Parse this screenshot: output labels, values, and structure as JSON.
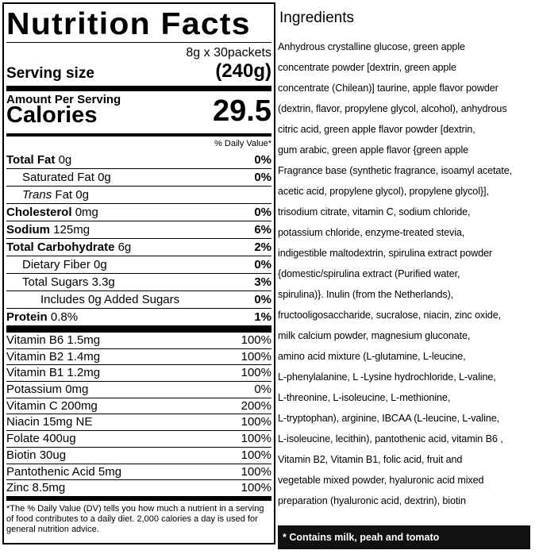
{
  "nutrition_facts": {
    "title": "Nutrition Facts",
    "servings": "8g x 30packets",
    "serving_size_label": "Serving size",
    "serving_size": "(240g)",
    "amount_per_serving": "Amount Per Serving",
    "calories_label": "Calories",
    "calories": "29.5",
    "daily_value_header": "% Daily Value*",
    "nutrients": [
      {
        "name": "Total Fat",
        "amount": "0g",
        "dv": "0%"
      },
      {
        "name": "Saturated Fat",
        "amount": "0g",
        "dv": "0%"
      },
      {
        "name_italic": "Trans",
        "name": "Fat",
        "amount": "0g"
      },
      {
        "name": "Cholesterol",
        "amount": "0mg",
        "dv": "0%"
      },
      {
        "name": "Sodium",
        "amount": "125mg",
        "dv": "6%"
      },
      {
        "name": "Total Carbohydrate",
        "amount": "6g",
        "dv": "2%"
      },
      {
        "name": "Dietary Fiber",
        "amount": "0g",
        "dv": "0%"
      },
      {
        "name": "Total Sugars",
        "amount": "3.3g",
        "dv": "3%"
      },
      {
        "name": "Includes 0g Added Sugars",
        "dv": "0%"
      },
      {
        "name": "Protein",
        "amount": "0.8%",
        "dv": "1%"
      }
    ],
    "vitamins": [
      {
        "name": "Vitamin B6 1.5mg",
        "dv": "100%"
      },
      {
        "name": "Vitamin B2 1.4mg",
        "dv": "100%"
      },
      {
        "name": "Vitamin B1 1.2mg",
        "dv": "100%"
      },
      {
        "name": "Potassium 0mg",
        "dv": "0%"
      },
      {
        "name": "Vitamin C 200mg",
        "dv": "200%"
      },
      {
        "name": "Niacin 15mg NE",
        "dv": "100%"
      },
      {
        "name": "Folate 400ug",
        "dv": "100%"
      },
      {
        "name": "Biotin 30ug",
        "dv": "100%"
      },
      {
        "name": "Pantothenic Acid 5mg",
        "dv": "100%"
      },
      {
        "name": "Zinc 8.5mg",
        "dv": "100%"
      }
    ],
    "footnote": "*The % Daily Value (DV) tells you how much a nutrient in a serving of food contributes to a daily diet. 2,000 calories a day is used for general nutrition advice."
  },
  "ingredients": {
    "title": "Ingredients",
    "lines": [
      "Anhydrous crystalline glucose, green apple",
      "concentrate powder [dextrin, green apple",
      "concentrate (Chilean)] taurine, apple flavor powder",
      "(dextrin, flavor, propylene glycol, alcohol), anhydrous",
      "citric acid, green apple flavor powder [dextrin,",
      "gum arabic, green apple flavor {green apple",
      "Fragrance base (synthetic fragrance, isoamyl acetate,",
      "acetic acid, propylene glycol), propylene glycol}],",
      "trisodium citrate, vitamin C, sodium chloride,",
      "potassium chloride, enzyme-treated stevia,",
      "indigestible maltodextrin, spirulina extract powder",
      "{domestic/spirulina extract (Purified water,",
      "spirulina)}. Inulin (from the Netherlands),",
      "fructooligosaccharide, sucralose, niacin, zinc oxide,",
      "milk calcium powder, magnesium gluconate,",
      "amino acid mixture (L-glutamine, L-leucine,",
      "L-phenylalanine, L -Lysine hydrochloride, L-valine,",
      "L-threonine, L-isoleucine, L-methionine,",
      "L-tryptophan), arginine, IBCAA  (L-leucine, L-valine,",
      "L-isoleucine, lecithin), pantothenic acid, vitamin B6 ,",
      "Vitamin B2, Vitamin B1, folic acid, fruit and",
      "vegetable mixed powder, hyaluronic acid mixed",
      "preparation (hyaluronic acid, dextrin), biotin"
    ],
    "note": "* Contains milk, peah and tomato"
  }
}
